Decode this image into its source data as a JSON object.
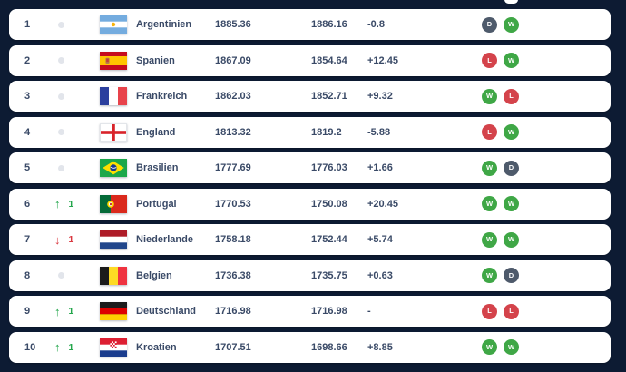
{
  "theme": {
    "background": "#0d1b33",
    "card_background": "#ffffff",
    "text_color": "#3a4a67",
    "up_color": "#23a64b",
    "down_color": "#d93840",
    "neutral_dot_color": "#e2e5eb",
    "badge_colors": {
      "W": "#3fa746",
      "L": "#d4434b",
      "D": "#4e5a6b"
    }
  },
  "icons": {
    "up_arrow": "↑",
    "down_arrow": "↓",
    "no_change": "dot"
  },
  "table": {
    "rows": [
      {
        "rank": "1",
        "movement": {
          "type": "none",
          "value": ""
        },
        "flag": "argentina",
        "country": "Argentinien",
        "points": "1885.36",
        "previous_points": "1886.16",
        "change": "-0.8",
        "form": [
          "D",
          "W"
        ]
      },
      {
        "rank": "2",
        "movement": {
          "type": "none",
          "value": ""
        },
        "flag": "spain",
        "country": "Spanien",
        "points": "1867.09",
        "previous_points": "1854.64",
        "change": "+12.45",
        "form": [
          "L",
          "W"
        ]
      },
      {
        "rank": "3",
        "movement": {
          "type": "none",
          "value": ""
        },
        "flag": "france",
        "country": "Frankreich",
        "points": "1862.03",
        "previous_points": "1852.71",
        "change": "+9.32",
        "form": [
          "W",
          "L"
        ]
      },
      {
        "rank": "4",
        "movement": {
          "type": "none",
          "value": ""
        },
        "flag": "england",
        "country": "England",
        "points": "1813.32",
        "previous_points": "1819.2",
        "change": "-5.88",
        "form": [
          "L",
          "W"
        ]
      },
      {
        "rank": "5",
        "movement": {
          "type": "none",
          "value": ""
        },
        "flag": "brazil",
        "country": "Brasilien",
        "points": "1777.69",
        "previous_points": "1776.03",
        "change": "+1.66",
        "form": [
          "W",
          "D"
        ]
      },
      {
        "rank": "6",
        "movement": {
          "type": "up",
          "value": "1"
        },
        "flag": "portugal",
        "country": "Portugal",
        "points": "1770.53",
        "previous_points": "1750.08",
        "change": "+20.45",
        "form": [
          "W",
          "W"
        ]
      },
      {
        "rank": "7",
        "movement": {
          "type": "down",
          "value": "1"
        },
        "flag": "netherlands",
        "country": "Niederlande",
        "points": "1758.18",
        "previous_points": "1752.44",
        "change": "+5.74",
        "form": [
          "W",
          "W"
        ]
      },
      {
        "rank": "8",
        "movement": {
          "type": "none",
          "value": ""
        },
        "flag": "belgium",
        "country": "Belgien",
        "points": "1736.38",
        "previous_points": "1735.75",
        "change": "+0.63",
        "form": [
          "W",
          "D"
        ]
      },
      {
        "rank": "9",
        "movement": {
          "type": "up",
          "value": "1"
        },
        "flag": "germany",
        "country": "Deutschland",
        "points": "1716.98",
        "previous_points": "1716.98",
        "change": "-",
        "form": [
          "L",
          "L"
        ]
      },
      {
        "rank": "10",
        "movement": {
          "type": "up",
          "value": "1"
        },
        "flag": "croatia",
        "country": "Kroatien",
        "points": "1707.51",
        "previous_points": "1698.66",
        "change": "+8.85",
        "form": [
          "W",
          "W"
        ]
      }
    ]
  }
}
